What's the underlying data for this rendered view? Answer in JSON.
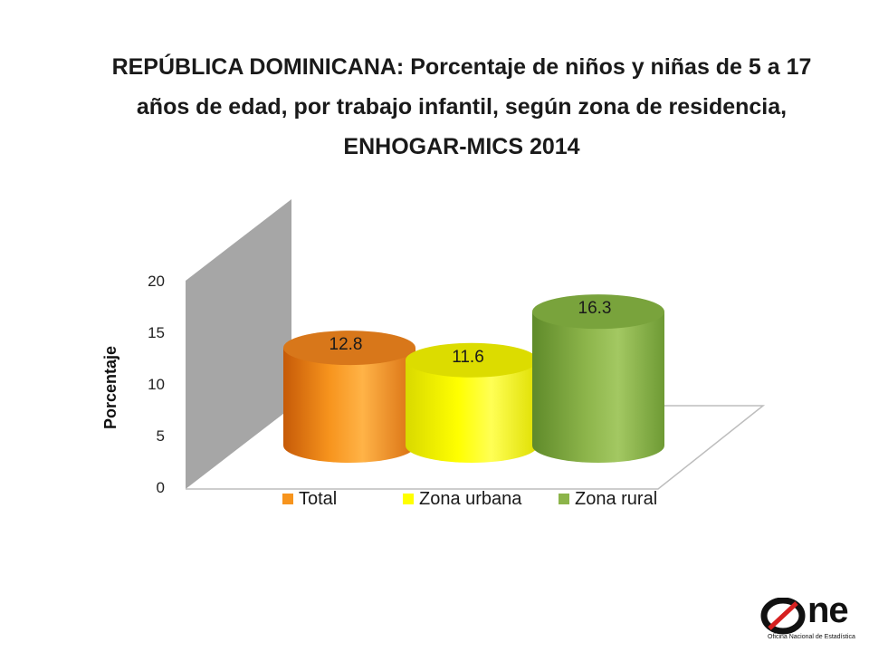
{
  "colors": {
    "total": "#f7941d",
    "urbana": "#ffff00",
    "rural": "#8cb44a",
    "wall": "#a6a6a6"
  },
  "chart_data": {
    "type": "bar",
    "style": "3d-cylinder",
    "title": "REPÚBLICA DOMINICANA: Porcentaje de niños y niñas de 5 a 17 años de edad, por trabajo infantil, según zona de residencia, ENHOGAR-MICS 2014",
    "ylabel": "Porcentaje",
    "xlabel": "",
    "ylim": [
      0,
      20
    ],
    "yticks": [
      "0",
      "5",
      "10",
      "15",
      "20"
    ],
    "grid": false,
    "legend_position": "bottom",
    "series": [
      {
        "name": "Total",
        "value": 12.8,
        "label": "12.8"
      },
      {
        "name": "Zona urbana",
        "value": 11.6,
        "label": "11.6"
      },
      {
        "name": "Zona rural",
        "value": 16.3,
        "label": "16.3"
      }
    ]
  },
  "logo": {
    "word": "One",
    "subtitle": "Oficina Nacional de Estadística"
  }
}
